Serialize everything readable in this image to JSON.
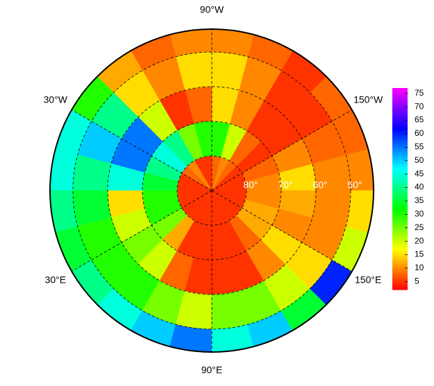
{
  "chart_data": {
    "type": "polar-grid",
    "lon_labels": [
      {
        "value": -90,
        "label": "90°W"
      },
      {
        "value": -30,
        "label": "30°W"
      },
      {
        "value": -150,
        "label": "150°W"
      },
      {
        "value": 30,
        "label": "30°E"
      },
      {
        "value": 150,
        "label": "150°E"
      },
      {
        "value": 90,
        "label": "90°E"
      }
    ],
    "lat_labels": [
      {
        "value": 80,
        "label": "80°"
      },
      {
        "value": 70,
        "label": "70°"
      },
      {
        "value": 60,
        "label": "60°"
      },
      {
        "value": 50,
        "label": "50°"
      }
    ],
    "lat_edges": [
      90,
      80,
      70,
      60,
      50,
      43.4
    ],
    "lon_edges": [
      -180,
      -165,
      -150,
      -135,
      -120,
      -105,
      -90,
      -75,
      -60,
      -45,
      -30,
      -15,
      0,
      15,
      30,
      45,
      60,
      75,
      90,
      105,
      120,
      135,
      150,
      165,
      180
    ],
    "values": [
      [
        5,
        5,
        5,
        8,
        10,
        8,
        5,
        5,
        10,
        8,
        5,
        5,
        5,
        5,
        5,
        5,
        5,
        5,
        5,
        5,
        5,
        5,
        5,
        5
      ],
      [
        10,
        8,
        5,
        8,
        20,
        30,
        30,
        25,
        40,
        45,
        40,
        35,
        30,
        30,
        25,
        12,
        5,
        5,
        5,
        5,
        8,
        12,
        12,
        10
      ],
      [
        15,
        10,
        5,
        5,
        10,
        15,
        8,
        5,
        20,
        55,
        55,
        45,
        15,
        20,
        25,
        20,
        8,
        5,
        5,
        5,
        10,
        15,
        10,
        12
      ],
      [
        10,
        8,
        5,
        5,
        10,
        15,
        15,
        10,
        15,
        40,
        50,
        40,
        35,
        30,
        30,
        30,
        25,
        20,
        25,
        25,
        20,
        15,
        10,
        10
      ],
      [
        10,
        8,
        8,
        5,
        8,
        10,
        10,
        8,
        12,
        30,
        45,
        45,
        40,
        35,
        40,
        45,
        50,
        55,
        45,
        50,
        35,
        60,
        20,
        15
      ]
    ],
    "colorbar": {
      "lim": [
        2,
        77
      ],
      "ticks": [
        5,
        10,
        15,
        20,
        25,
        30,
        35,
        40,
        45,
        50,
        55,
        60,
        65,
        70,
        75
      ]
    }
  }
}
